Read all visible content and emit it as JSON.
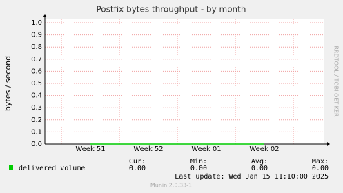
{
  "chart_data": {
    "type": "line",
    "title": "Postfix bytes throughput - by month",
    "y_label": "bytes / second",
    "side_credit": "RRDTOOL / TOBI OETIKER",
    "categories": [
      "Week 51",
      "Week 52",
      "Week 01",
      "Week 02"
    ],
    "series": [
      {
        "name": "delivered volume",
        "color": "#00cc00",
        "values": [
          0,
          0,
          0,
          0
        ]
      }
    ],
    "ylim": [
      0,
      1
    ],
    "yticks": [
      {
        "value": 0,
        "label": "0.0"
      },
      0.1,
      0.2,
      0.3,
      0.4,
      0.5,
      0.6,
      0.7,
      0.8,
      0.9,
      {
        "value": 1,
        "label": "1.0"
      }
    ],
    "grid": true,
    "grid_color": "#f0a0a0",
    "stats": {
      "headers": [
        "Cur:",
        "Min:",
        "Avg:",
        "Max:"
      ],
      "values": [
        "0.00",
        "0.00",
        "0.00",
        "0.00"
      ]
    },
    "last_update": "Last update: Wed Jan 15 11:10:00 2025",
    "footer": "Munin 2.0.33-1"
  }
}
